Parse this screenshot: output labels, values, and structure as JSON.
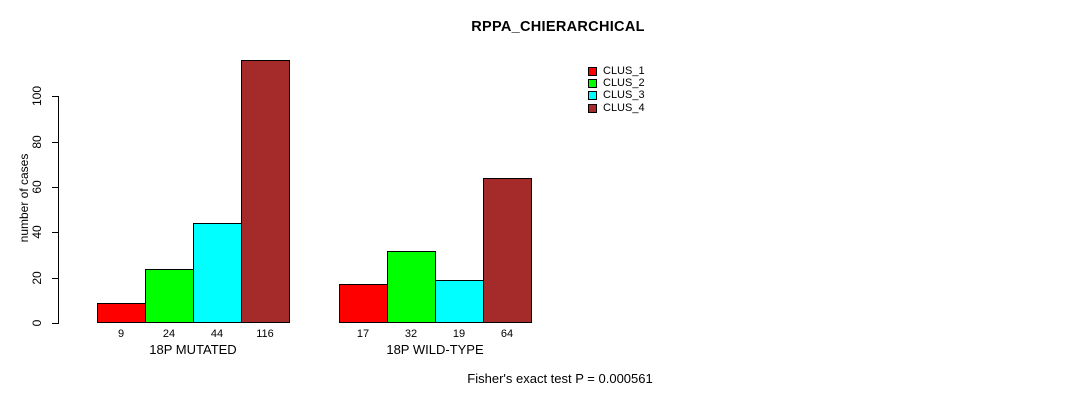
{
  "title": "RPPA_CHIERARCHICAL",
  "footer": "Fisher's exact test P = 0.000561",
  "chart_data": {
    "type": "bar",
    "title": "RPPA_CHIERARCHICAL",
    "xlabel": "",
    "ylabel": "number of cases",
    "yticks": [
      0,
      20,
      40,
      60,
      80,
      100
    ],
    "ylim": [
      0,
      118
    ],
    "grid": false,
    "groups": [
      {
        "label": "18P MUTATED",
        "values": [
          9,
          24,
          44,
          116
        ]
      },
      {
        "label": "18P WILD-TYPE",
        "values": [
          17,
          32,
          19,
          64
        ]
      }
    ],
    "series_colors": [
      "#FF0000",
      "#00FF00",
      "#00FFFF",
      "#A52A2A"
    ],
    "legend": {
      "position": "top-right",
      "entries": [
        {
          "label": "CLUS_1",
          "color": "#FF0000"
        },
        {
          "label": "CLUS_2",
          "color": "#00FF00"
        },
        {
          "label": "CLUS_3",
          "color": "#00FFFF"
        },
        {
          "label": "CLUS_4",
          "color": "#A52A2A"
        }
      ]
    },
    "annotation": "Fisher's exact test P = 0.000561"
  }
}
